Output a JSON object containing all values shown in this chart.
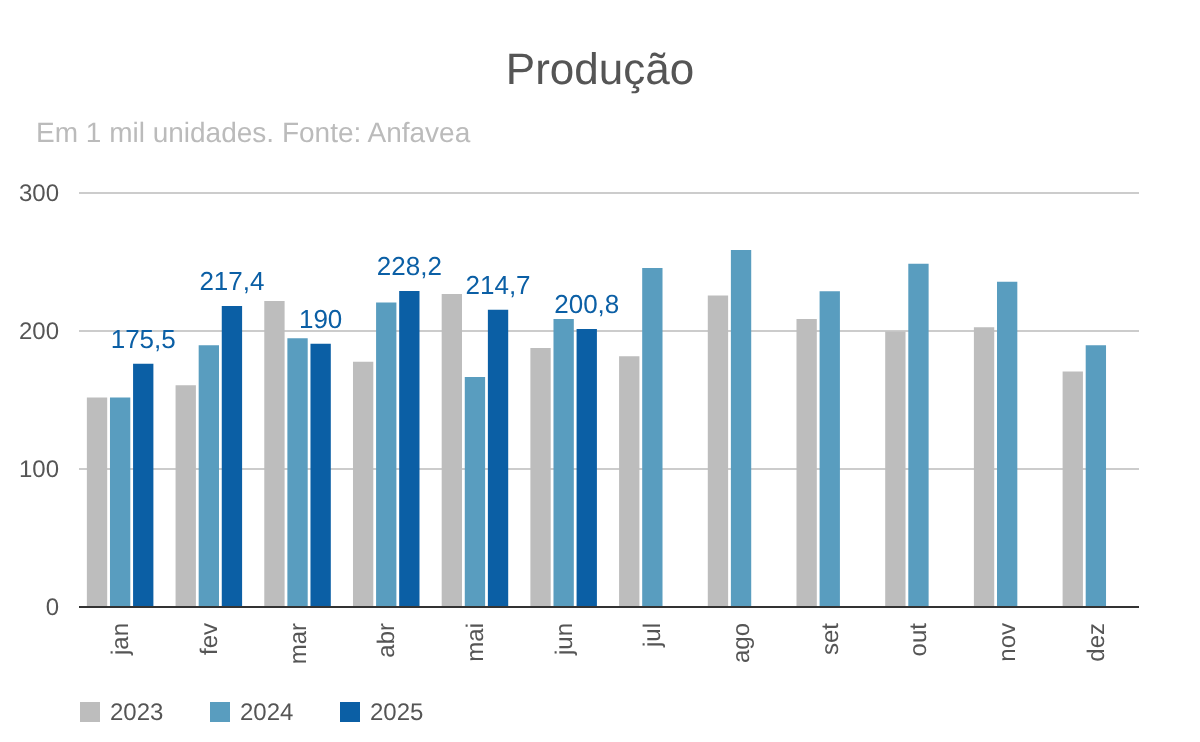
{
  "chart_data": {
    "type": "bar",
    "title": "Produção",
    "subtitle": "Em 1 mil unidades. Fonte: Anfavea",
    "categories": [
      "jan",
      "fev",
      "mar",
      "abr",
      "mai",
      "jun",
      "jul",
      "ago",
      "set",
      "out",
      "nov",
      "dez"
    ],
    "series": [
      {
        "name": "2023",
        "color": "#bdbdbd",
        "values": [
          151,
          160,
          221,
          177,
          226,
          187,
          181,
          225,
          208,
          199,
          202,
          170
        ]
      },
      {
        "name": "2024",
        "color": "#599dbf",
        "values": [
          151,
          189,
          194,
          220,
          166,
          208,
          245,
          258,
          228,
          248,
          235,
          189
        ]
      },
      {
        "name": "2025",
        "color": "#0b5fa5",
        "values": [
          175.5,
          217.4,
          190,
          228.2,
          214.7,
          200.8,
          null,
          null,
          null,
          null,
          null,
          null
        ],
        "value_labels": [
          "175,5",
          "217,4",
          "190",
          "228,2",
          "214,7",
          "200,8",
          null,
          null,
          null,
          null,
          null,
          null
        ]
      }
    ],
    "ylim": [
      0,
      300
    ],
    "yticks": [
      0,
      100,
      200,
      300
    ],
    "grid": "y",
    "legend": "bottom"
  }
}
